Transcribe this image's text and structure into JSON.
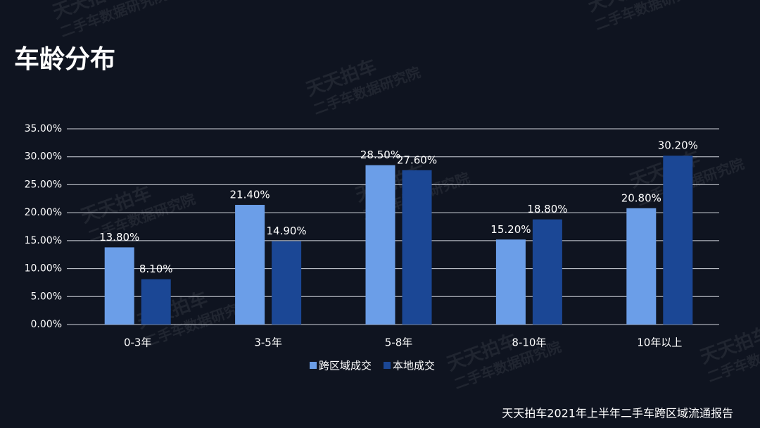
{
  "header": {
    "title": "车龄分布"
  },
  "watermark": {
    "brand": "天天拍车",
    "sub": "二手车数据研究院"
  },
  "chart_data": {
    "type": "bar",
    "categories": [
      "0-3年",
      "3-5年",
      "5-8年",
      "8-10年",
      "10年以上"
    ],
    "series": [
      {
        "name": "跨区域成交",
        "color": "#6b9ee8",
        "values": [
          13.8,
          21.4,
          28.5,
          15.2,
          20.8
        ],
        "value_labels": [
          "13.80%",
          "21.40%",
          "28.50%",
          "15.20%",
          "20.80%"
        ]
      },
      {
        "name": "本地成交",
        "color": "#1b4795",
        "values": [
          8.1,
          14.9,
          27.6,
          18.8,
          30.2
        ],
        "value_labels": [
          "8.10%",
          "14.90%",
          "27.60%",
          "18.80%",
          "30.20%"
        ]
      }
    ],
    "ylim": [
      0,
      35
    ],
    "yticks": [
      {
        "value": 0,
        "label": "0.00%"
      },
      {
        "value": 5,
        "label": "5.00%"
      },
      {
        "value": 10,
        "label": "10.00%"
      },
      {
        "value": 15,
        "label": "15.00%"
      },
      {
        "value": 20,
        "label": "20.00%"
      },
      {
        "value": 25,
        "label": "25.00%"
      },
      {
        "value": 30,
        "label": "30.00%"
      },
      {
        "value": 35,
        "label": "35.00%"
      }
    ],
    "grid": true,
    "legend": "bottom"
  },
  "footer": {
    "source": "天天拍车2021年上半年二手车跨区域流通报告"
  }
}
